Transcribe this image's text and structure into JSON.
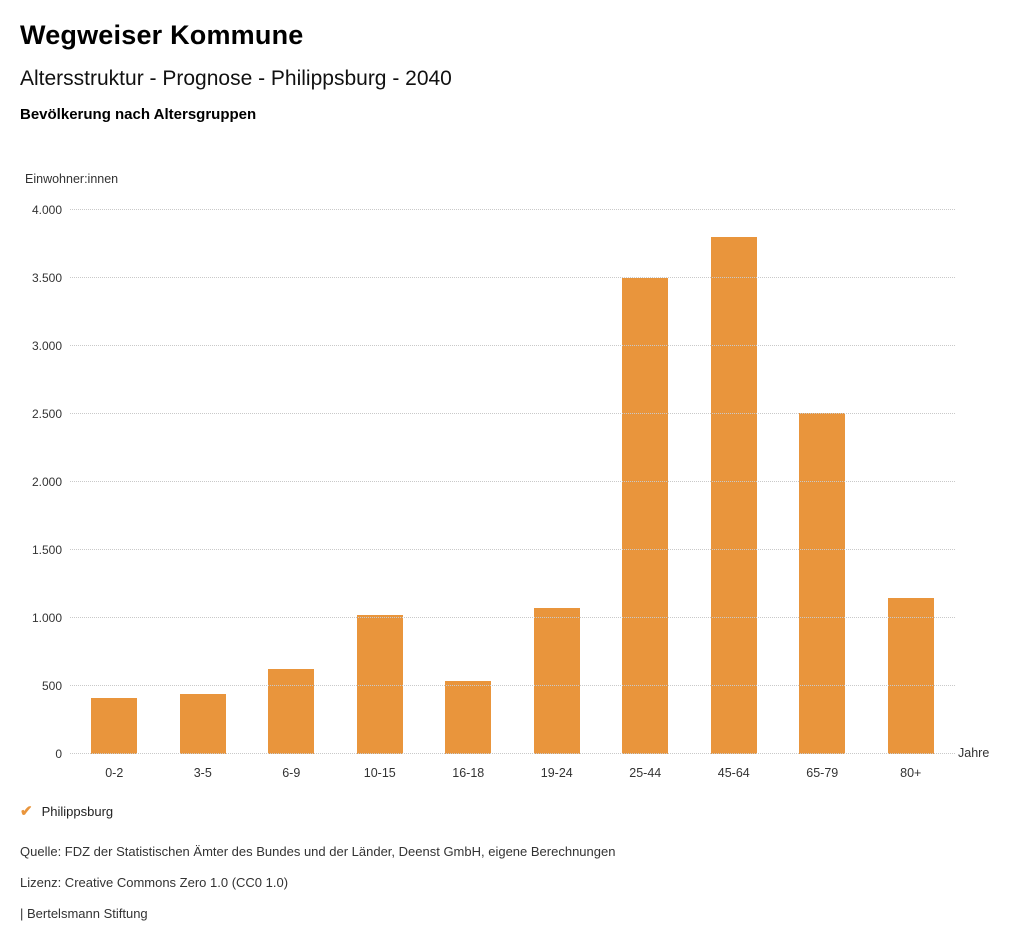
{
  "header": {
    "title": "Wegweiser Kommune",
    "subtitle": "Altersstruktur - Prognose - Philippsburg - 2040",
    "section_title": "Bevölkerung nach Altersgruppen"
  },
  "chart_data": {
    "type": "bar",
    "title": "Bevölkerung nach Altersgruppen",
    "ylabel": "Einwohner:innen",
    "xlabel": "Jahre",
    "categories": [
      "0-2",
      "3-5",
      "6-9",
      "10-15",
      "16-18",
      "19-24",
      "25-44",
      "45-64",
      "65-79",
      "80+"
    ],
    "series": [
      {
        "name": "Philippsburg",
        "values": [
          410,
          440,
          625,
          1020,
          540,
          1075,
          3500,
          3800,
          2510,
          1150
        ]
      }
    ],
    "ylim": [
      0,
      4000
    ],
    "ytick_step": 500,
    "ytick_labels": [
      "0",
      "500",
      "1.000",
      "1.500",
      "2.000",
      "2.500",
      "3.000",
      "3.500",
      "4.000"
    ],
    "grid": "dotted-horizontal",
    "bar_color": "#E9953C",
    "legend_position": "bottom-left"
  },
  "legend": {
    "check_icon": "✔",
    "label": "Philippsburg"
  },
  "footer": {
    "source": "Quelle: FDZ der Statistischen Ämter des Bundes und der Länder, Deenst GmbH, eigene Berechnungen",
    "license": "Lizenz: Creative Commons Zero 1.0 (CC0 1.0)",
    "attribution": "| Bertelsmann Stiftung"
  }
}
